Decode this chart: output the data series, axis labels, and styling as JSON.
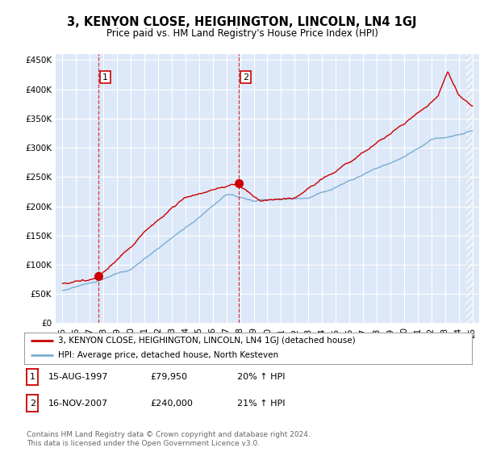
{
  "title": "3, KENYON CLOSE, HEIGHINGTON, LINCOLN, LN4 1GJ",
  "subtitle": "Price paid vs. HM Land Registry's House Price Index (HPI)",
  "bg_color": "#dde8f8",
  "red_color": "#cc0000",
  "blue_color": "#7aadd4",
  "grid_color": "#ffffff",
  "ylim": [
    0,
    460000
  ],
  "yticks": [
    0,
    50000,
    100000,
    150000,
    200000,
    250000,
    300000,
    350000,
    400000,
    450000
  ],
  "ytick_labels": [
    "£0",
    "£50K",
    "£100K",
    "£150K",
    "£200K",
    "£250K",
    "£300K",
    "£350K",
    "£400K",
    "£450K"
  ],
  "xlim_start": 1994.5,
  "xlim_end": 2025.5,
  "purchase1_x": 1997.62,
  "purchase1_y": 79950,
  "purchase2_x": 2007.88,
  "purchase2_y": 240000,
  "legend_label_red": "3, KENYON CLOSE, HEIGHINGTON, LINCOLN, LN4 1GJ (detached house)",
  "legend_label_blue": "HPI: Average price, detached house, North Kesteven",
  "table_row1": [
    "1",
    "15-AUG-1997",
    "£79,950",
    "20% ↑ HPI"
  ],
  "table_row2": [
    "2",
    "16-NOV-2007",
    "£240,000",
    "21% ↑ HPI"
  ],
  "footer": "Contains HM Land Registry data © Crown copyright and database right 2024.\nThis data is licensed under the Open Government Licence v3.0.",
  "xtick_labels": [
    "95",
    "96",
    "97",
    "98",
    "99",
    "00",
    "01",
    "02",
    "03",
    "04",
    "05",
    "06",
    "07",
    "08",
    "09",
    "10",
    "11",
    "12",
    "13",
    "14",
    "15",
    "16",
    "17",
    "18",
    "19",
    "20",
    "21",
    "22",
    "23",
    "24",
    "25"
  ],
  "xticks": [
    1995,
    1996,
    1997,
    1998,
    1999,
    2000,
    2001,
    2002,
    2003,
    2004,
    2005,
    2006,
    2007,
    2008,
    2009,
    2010,
    2011,
    2012,
    2013,
    2014,
    2015,
    2016,
    2017,
    2018,
    2019,
    2020,
    2021,
    2022,
    2023,
    2024,
    2025
  ]
}
